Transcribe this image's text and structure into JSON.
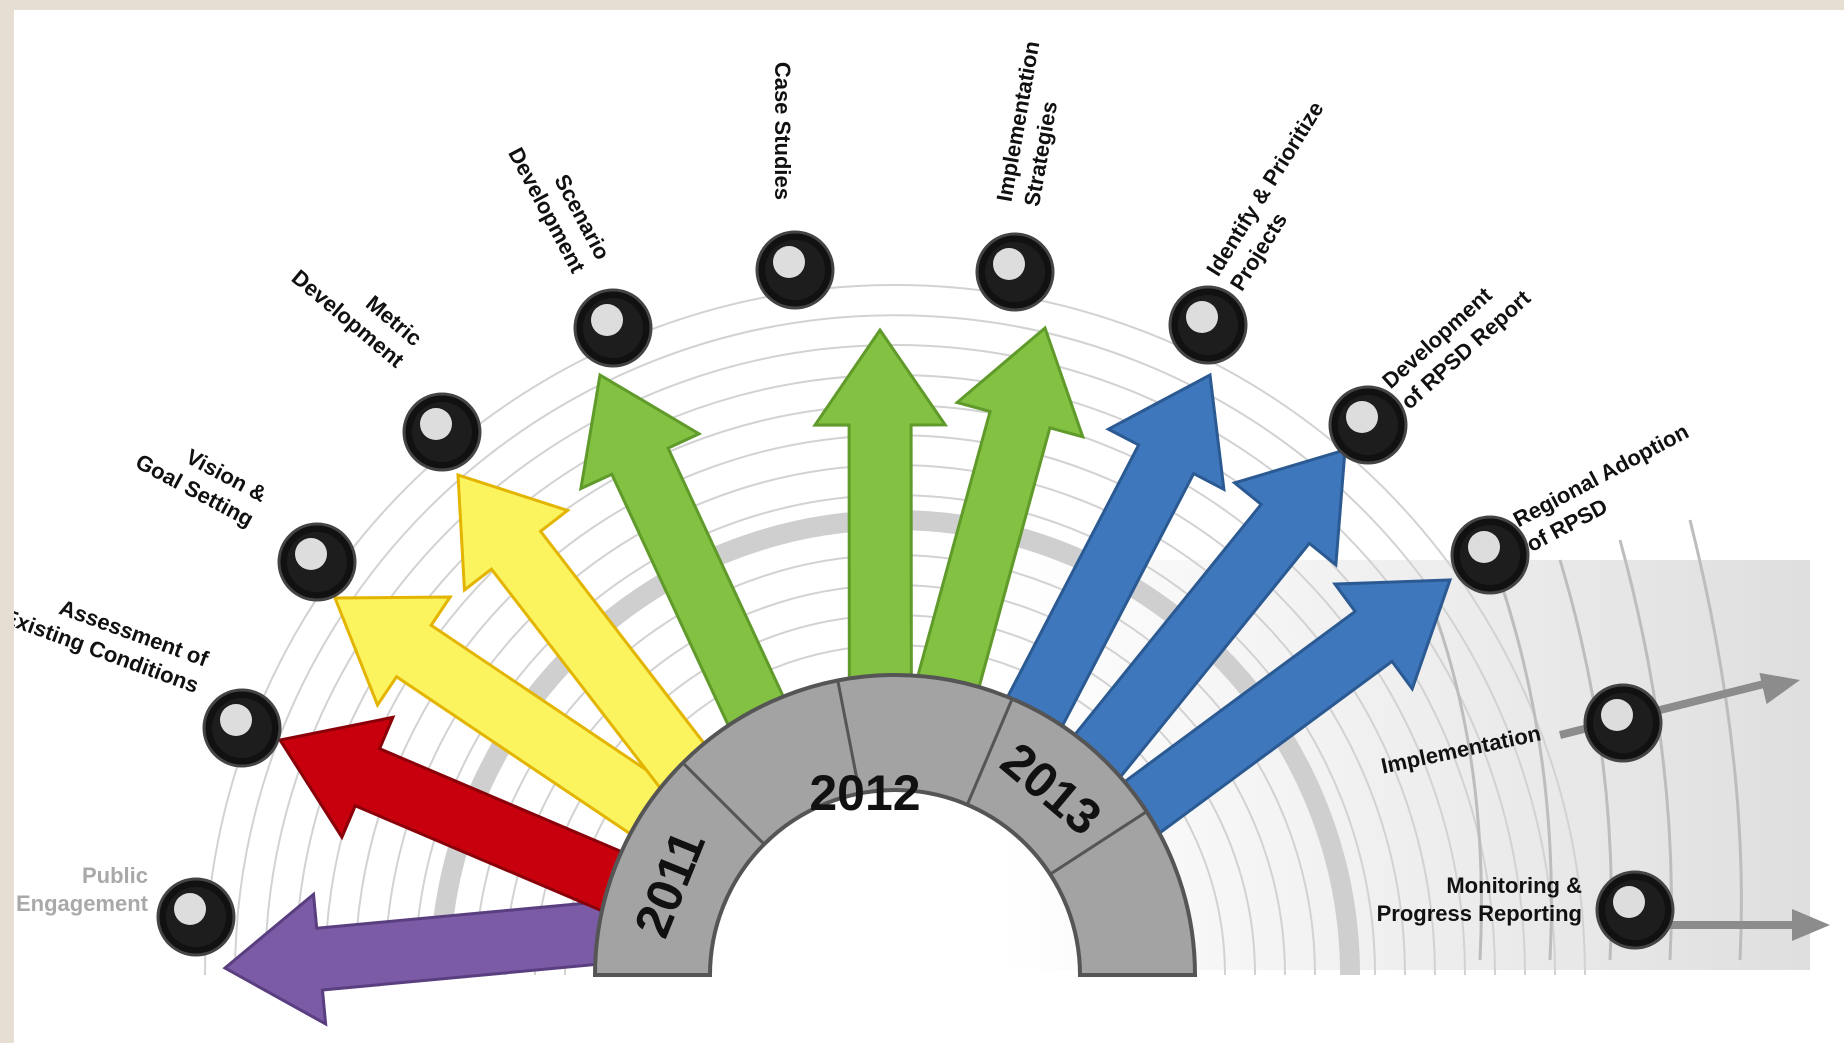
{
  "years": [
    "2011",
    "2012",
    "2013"
  ],
  "stages": [
    {
      "id": "public-engagement",
      "lines": [
        "Public",
        "Engagement"
      ],
      "icon": "people-icon",
      "color": "#7b5aa6"
    },
    {
      "id": "assessment",
      "lines": [
        "Assessment of",
        "Existing Conditions"
      ],
      "icon": "magnifier-icon",
      "color": "#c8000e"
    },
    {
      "id": "vision",
      "lines": [
        "Vision &",
        "Goal Setting"
      ],
      "icon": "lightbulb-icon",
      "color": "#fbf45f"
    },
    {
      "id": "metric",
      "lines": [
        "Metric",
        "Development"
      ],
      "icon": "ruler-pencil-icon",
      "color": "#fbf45f"
    },
    {
      "id": "scenario",
      "lines": [
        "Scenario",
        "Development"
      ],
      "icon": "gears-icon",
      "color": "#83c142"
    },
    {
      "id": "case-studies",
      "lines": [
        "Case Studies"
      ],
      "icon": "database-icon",
      "color": "#83c142"
    },
    {
      "id": "implementation-strategies",
      "lines": [
        "Implementation",
        "Strategies"
      ],
      "icon": "hammer-icon",
      "color": "#83c142"
    },
    {
      "id": "identify-prioritize",
      "lines": [
        "Identify & Prioritize",
        "Projects"
      ],
      "icon": "arrows-icon",
      "color": "#3f77bd"
    },
    {
      "id": "rpsd-report",
      "lines": [
        "Development",
        "of RPSD Report"
      ],
      "icon": "notebook-icon",
      "color": "#3f77bd"
    },
    {
      "id": "regional-adoption",
      "lines": [
        "Regional Adoption",
        "of RPSD"
      ],
      "icon": "thumbs-up-icon",
      "color": "#3f77bd"
    },
    {
      "id": "implementation",
      "lines": [
        "Implementation"
      ],
      "icon": "wrench-icon",
      "color": "#888888"
    },
    {
      "id": "monitoring",
      "lines": [
        "Monitoring &",
        "Progress Reporting"
      ],
      "icon": "bar-chart-icon",
      "color": "#888888"
    }
  ]
}
